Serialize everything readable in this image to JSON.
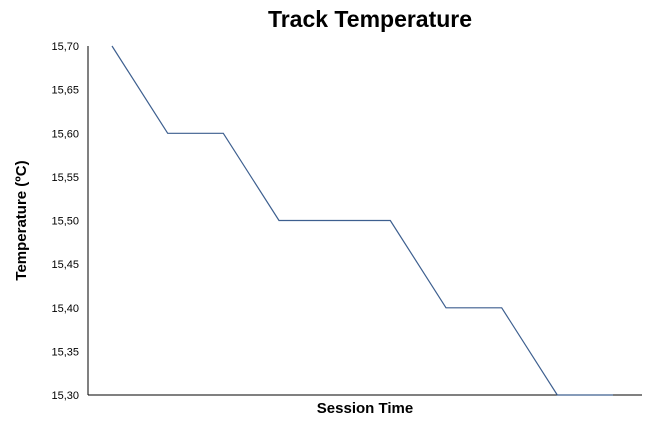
{
  "chart_data": {
    "type": "line",
    "title": "Track Temperature",
    "xlabel": "Session Time",
    "ylabel": "Temperature (ºC)",
    "ylim": [
      15.3,
      15.7
    ],
    "y_ticks": [
      "15,30",
      "15,35",
      "15,40",
      "15,45",
      "15,50",
      "15,55",
      "15,60",
      "15,65",
      "15,70"
    ],
    "x_ticks": [],
    "grid": false,
    "legend": "none",
    "series": [
      {
        "color": "#3d5f8f",
        "x": [
          0,
          1,
          2,
          3,
          4,
          5,
          6,
          7,
          8,
          9
        ],
        "y": [
          15.7,
          15.6,
          15.6,
          15.5,
          15.5,
          15.5,
          15.4,
          15.4,
          15.3,
          15.3
        ]
      }
    ]
  }
}
